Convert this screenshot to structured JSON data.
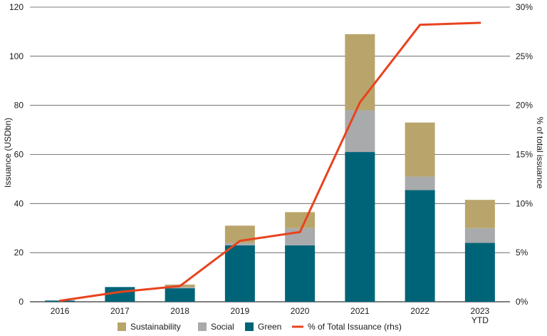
{
  "chart_data": {
    "type": "bar",
    "categories": [
      "2016",
      "2017",
      "2018",
      "2019",
      "2020",
      "2021",
      "2022",
      "2023\nYTD"
    ],
    "series": [
      {
        "name": "Green",
        "values": [
          0.5,
          6,
          5.5,
          23,
          23,
          61,
          45.5,
          24
        ],
        "color": "#006478",
        "axis": "left"
      },
      {
        "name": "Social",
        "values": [
          0,
          0,
          0.5,
          1,
          7,
          17,
          5.5,
          6
        ],
        "color": "#a9aaab",
        "axis": "left"
      },
      {
        "name": "Sustainability",
        "values": [
          0,
          0,
          1,
          7,
          6.5,
          31,
          22,
          11.5
        ],
        "color": "#b9a56b",
        "axis": "left"
      },
      {
        "name": "% of Total Issuance (rhs)",
        "values": [
          0.1,
          1.0,
          1.6,
          6.2,
          7.1,
          20.3,
          28.2,
          28.4
        ],
        "color": "#e8431f",
        "axis": "right",
        "type": "line"
      }
    ],
    "ylabel": "Issuance (USDbn)",
    "y2label": "% of total issuance",
    "ylim": [
      0,
      120
    ],
    "y2lim": [
      0,
      30
    ],
    "yticks": [
      0,
      20,
      40,
      60,
      80,
      100,
      120
    ],
    "y2ticks": [
      "0%",
      "5%",
      "10%",
      "15%",
      "20%",
      "25%",
      "30%"
    ],
    "grid": true,
    "legend": {
      "position": "bottom",
      "order": [
        "Sustainability",
        "Social",
        "Green",
        "% of Total Issuance (rhs)"
      ]
    }
  }
}
